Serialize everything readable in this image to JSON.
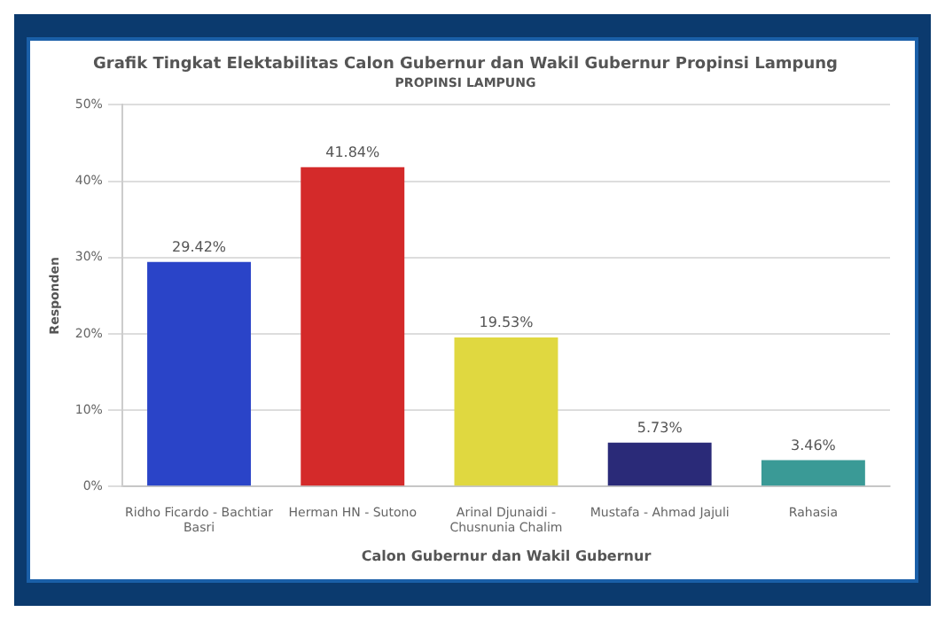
{
  "chart_data": {
    "type": "bar",
    "title": "Grafik Tingkat Elektabilitas Calon Gubernur dan Wakil Gubernur Propinsi Lampung",
    "subtitle": "PROPINSI LAMPUNG",
    "xlabel": "Calon Gubernur dan Wakil Gubernur",
    "ylabel": "Responden",
    "categories": [
      "Ridho Ficardo - Bachtiar Basri",
      "Herman HN - Sutono",
      "Arinal Djunaidi - Chusnunia Chalim",
      "Mustafa - Ahmad Jajuli",
      "Rahasia"
    ],
    "values": [
      29.42,
      41.84,
      19.53,
      5.73,
      3.46
    ],
    "colors": [
      "#2a44c8",
      "#d42a2a",
      "#e0d840",
      "#2a2a78",
      "#3a9a96"
    ],
    "value_labels": [
      "29.42%",
      "41.84%",
      "19.53%",
      "5.73%",
      "3.46%"
    ],
    "ylim": [
      0,
      50
    ],
    "yticks": [
      {
        "value": 0,
        "label": "0%"
      },
      {
        "value": 10,
        "label": "10%"
      },
      {
        "value": 20,
        "label": "20%"
      },
      {
        "value": 30,
        "label": "30%"
      },
      {
        "value": 40,
        "label": "40%"
      },
      {
        "value": 50,
        "label": "50%"
      }
    ],
    "grid": "y",
    "legend": false
  }
}
